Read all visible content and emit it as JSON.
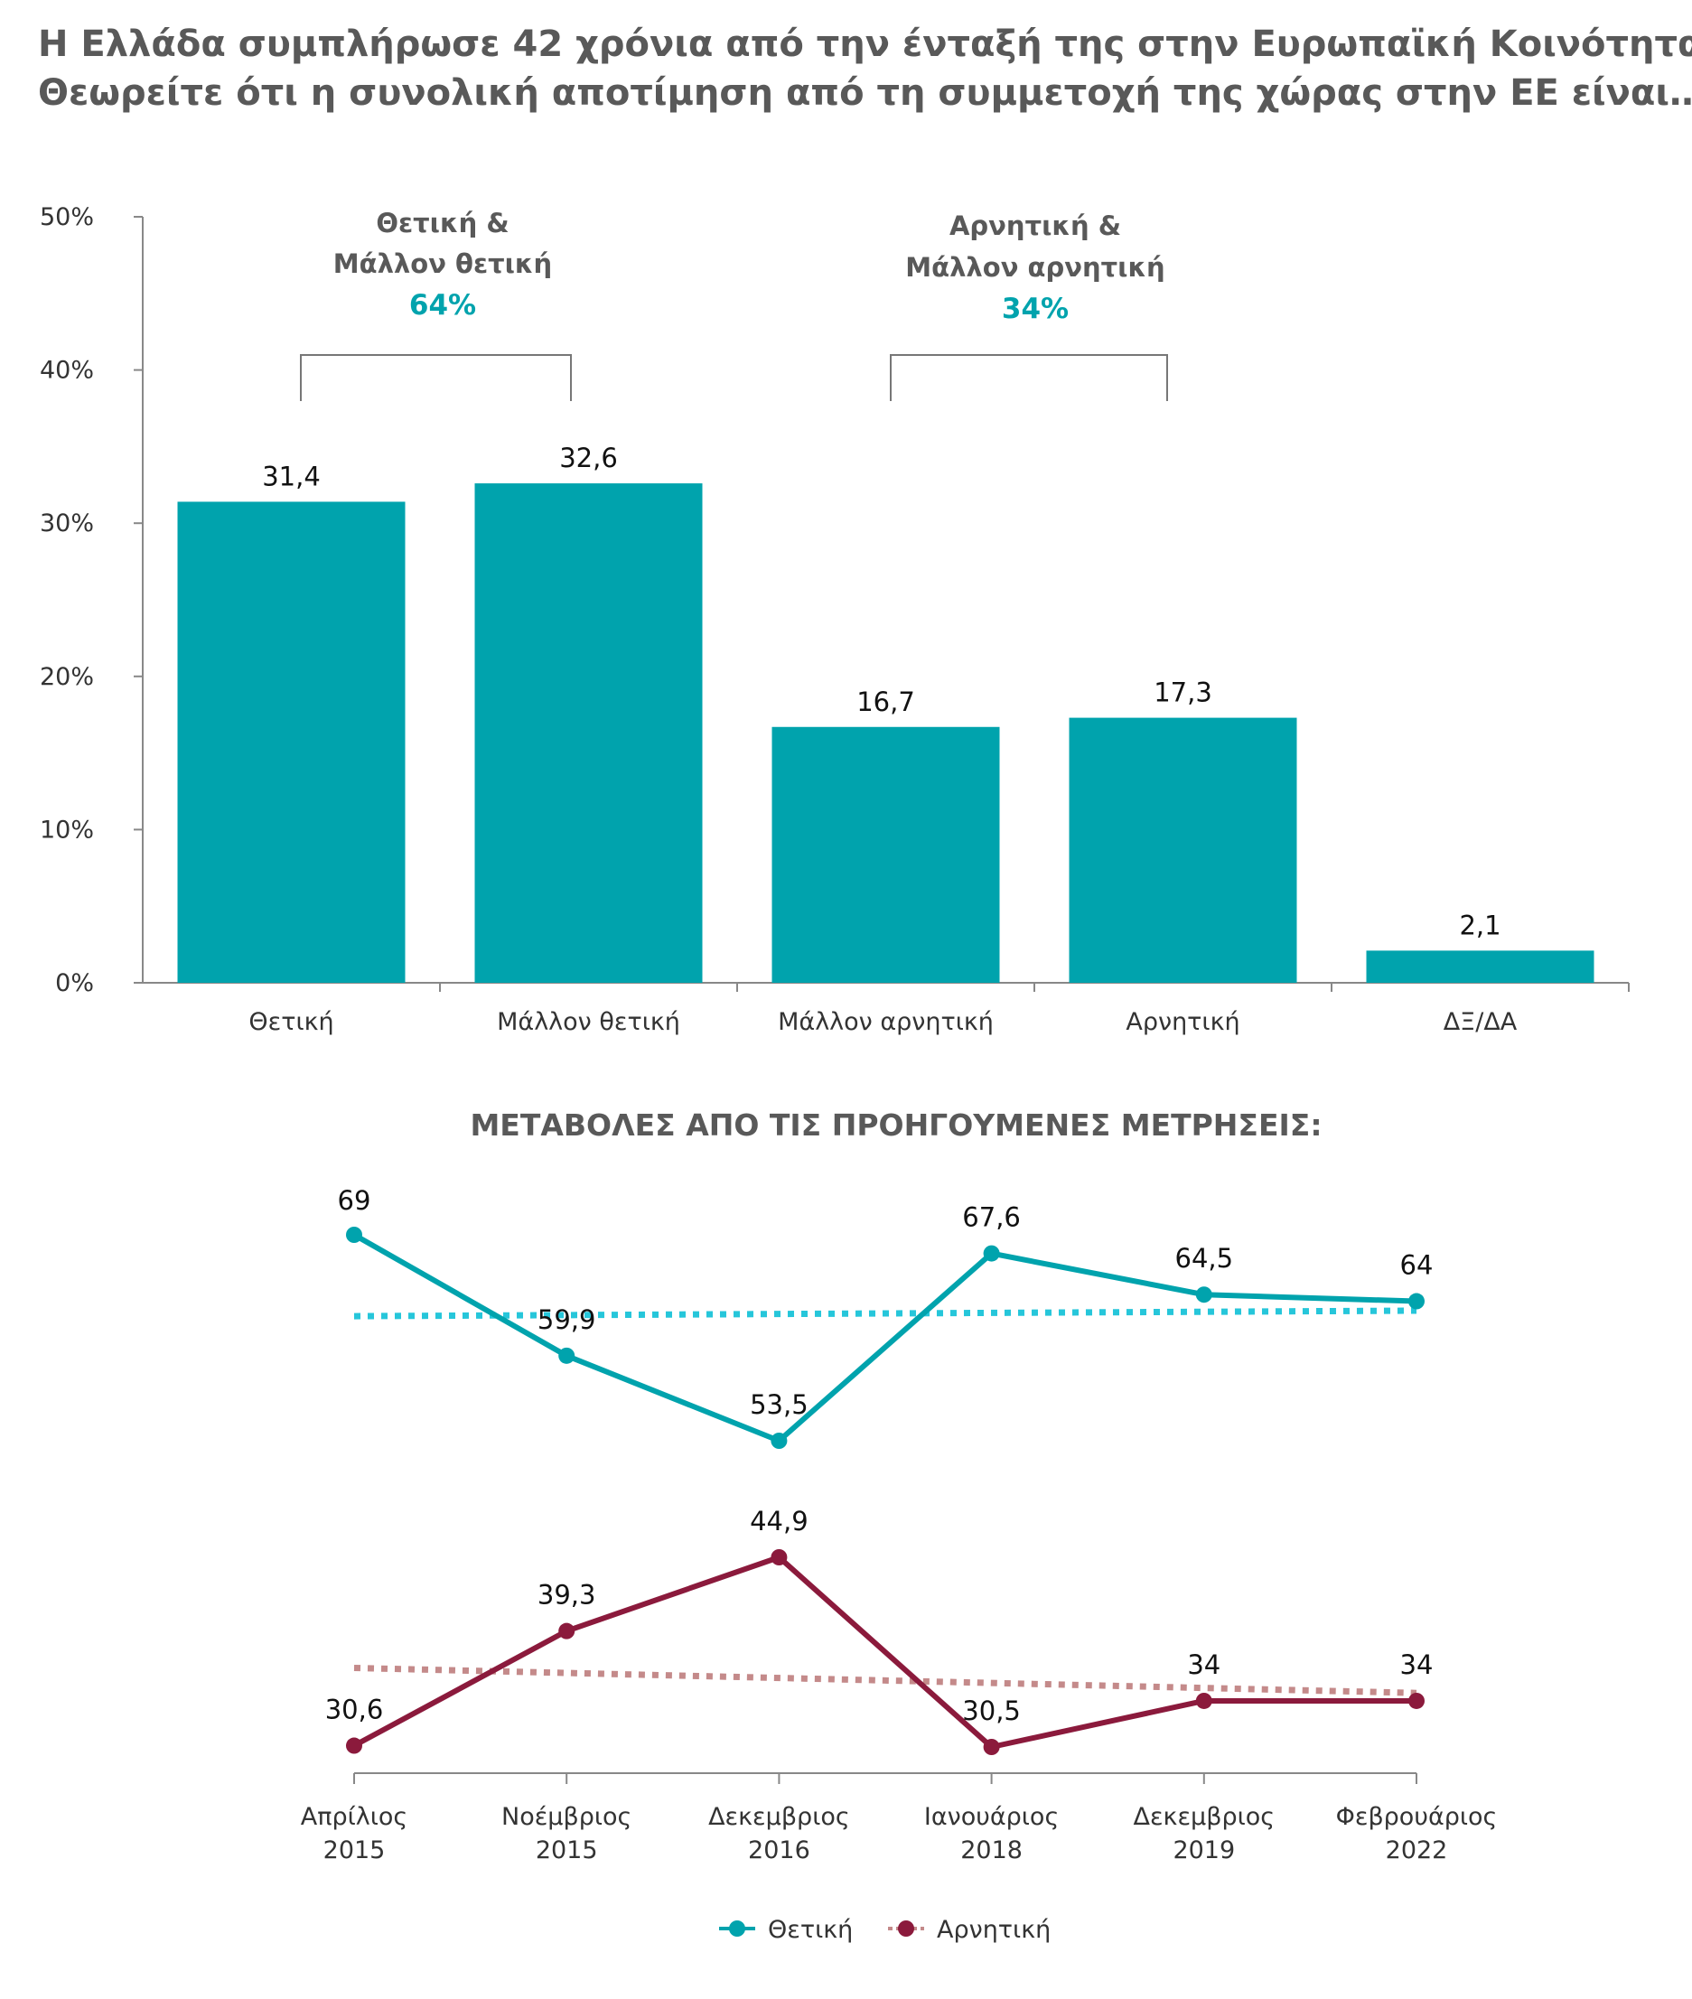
{
  "title": {
    "line1": "Η Ελλάδα συμπλήρωσε 42 χρόνια από την ένταξή της στην Ευρωπαϊκή Κοινότητα.",
    "line2": "Θεωρείτε ότι η συνολική αποτίμηση από τη συμμετοχή της χώρας στην ΕΕ είναι…"
  },
  "colors": {
    "teal": "#00A3AD",
    "maroon": "#8B1A3C",
    "teal_trend": "#26C6DA",
    "maroon_trend": "#C48A8A",
    "grey_text": "#595959"
  },
  "groups": [
    {
      "line1": "Θετική &",
      "line2": "Μάλλον θετική",
      "pct": "64%"
    },
    {
      "line1": "Αρνητική &",
      "line2": "Μάλλον αρνητική",
      "pct": "34%"
    }
  ],
  "changes_title": "ΜΕΤΑΒΟΛΕΣ ΑΠΟ ΤΙΣ ΠΡΟΗΓΟΥΜΕΝΕΣ ΜΕΤΡΗΣΕΙΣ:",
  "chart_data": [
    {
      "type": "bar",
      "categories": [
        "Θετική",
        "Μάλλον θετική",
        "Μάλλον αρνητική",
        "Αρνητική",
        "ΔΞ/ΔΑ"
      ],
      "values": [
        31.4,
        32.6,
        16.7,
        17.3,
        2.1
      ],
      "value_labels": [
        "31,4",
        "32,6",
        "16,7",
        "17,3",
        "2,1"
      ],
      "yticks": [
        "0%",
        "10%",
        "20%",
        "30%",
        "40%",
        "50%"
      ],
      "ylim": [
        0,
        50
      ],
      "grid": false
    },
    {
      "type": "line",
      "categories": [
        [
          "Απρίλιος",
          "2015"
        ],
        [
          "Νοέμβριος",
          "2015"
        ],
        [
          "Δεκεμβριος",
          "2016"
        ],
        [
          "Ιανουάριος",
          "2018"
        ],
        [
          "Δεκεμβριος",
          "2019"
        ],
        [
          "Φεβρουάριος",
          "2022"
        ]
      ],
      "series": [
        {
          "name": "Θετική",
          "values": [
            69,
            59.9,
            53.5,
            67.6,
            64.5,
            64
          ],
          "labels": [
            "69",
            "59,9",
            "53,5",
            "67,6",
            "64,5",
            "64"
          ]
        },
        {
          "name": "Αρνητική",
          "values": [
            30.6,
            39.3,
            44.9,
            30.5,
            34,
            34
          ],
          "labels": [
            "30,6",
            "39,3",
            "44,9",
            "30,5",
            "34",
            "34"
          ]
        }
      ],
      "legend_position": "bottom-center",
      "trendlines": "dotted linear trend per series"
    }
  ]
}
